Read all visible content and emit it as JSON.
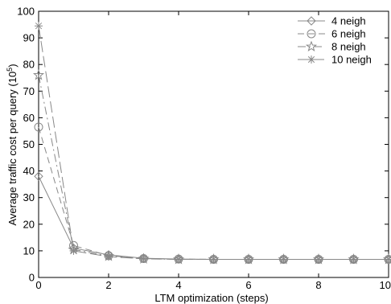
{
  "chart_data": {
    "type": "line",
    "xlabel": "LTM optimization (steps)",
    "ylabel": {
      "prefix": "Average traffic cost per query (10",
      "exponent": "5",
      "suffix": ")"
    },
    "xlim": [
      0,
      10
    ],
    "ylim": [
      0,
      100
    ],
    "xticks": [
      0,
      2,
      4,
      6,
      8,
      10
    ],
    "yticks": [
      0,
      10,
      20,
      30,
      40,
      50,
      60,
      70,
      80,
      90,
      100
    ],
    "grid": false,
    "legend_position": "top-right",
    "x": [
      0,
      1,
      2,
      3,
      4,
      5,
      6,
      7,
      8,
      9,
      10
    ],
    "series": [
      {
        "name": "4 neigh",
        "marker": "diamond",
        "dash": "solid",
        "values": [
          38,
          11,
          8.5,
          7.2,
          6.9,
          6.8,
          6.8,
          6.8,
          6.8,
          6.8,
          6.8
        ]
      },
      {
        "name": "6 neigh",
        "marker": "circle",
        "dash": "dashed",
        "values": [
          56.5,
          12,
          8.2,
          7.1,
          6.9,
          6.8,
          6.8,
          6.8,
          6.8,
          6.8,
          6.8
        ]
      },
      {
        "name": "8 neigh",
        "marker": "star",
        "dash": "dashdot",
        "values": [
          76,
          10.5,
          8,
          7,
          6.8,
          6.8,
          6.8,
          6.8,
          6.8,
          6.8,
          6.8
        ]
      },
      {
        "name": "10 neigh",
        "marker": "asterisk",
        "dash": "longdash",
        "values": [
          94.5,
          10,
          7.8,
          7,
          6.8,
          6.8,
          6.8,
          6.8,
          6.8,
          6.8,
          6.8
        ]
      }
    ],
    "colors": {
      "line": "#888888",
      "axis": "#000000",
      "background": "#ffffff"
    }
  }
}
